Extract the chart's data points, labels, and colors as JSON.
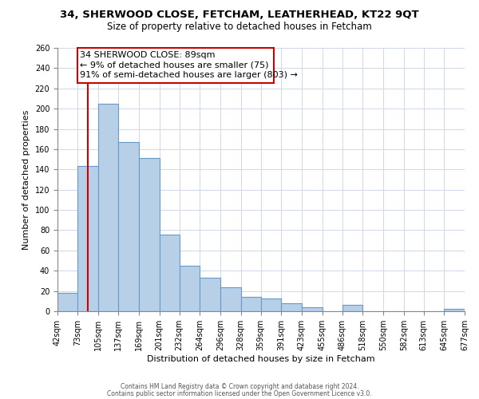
{
  "title1": "34, SHERWOOD CLOSE, FETCHAM, LEATHERHEAD, KT22 9QT",
  "title2": "Size of property relative to detached houses in Fetcham",
  "xlabel": "Distribution of detached houses by size in Fetcham",
  "ylabel": "Number of detached properties",
  "bar_left_edges": [
    42,
    73,
    105,
    137,
    169,
    201,
    232,
    264,
    296,
    328,
    359,
    391,
    423,
    455,
    486,
    518,
    550,
    582,
    613,
    645
  ],
  "bar_heights": [
    18,
    143,
    205,
    167,
    151,
    76,
    45,
    33,
    24,
    14,
    13,
    8,
    4,
    0,
    6,
    0,
    0,
    0,
    0,
    2
  ],
  "bar_widths": [
    31,
    32,
    32,
    32,
    32,
    31,
    32,
    32,
    32,
    31,
    32,
    32,
    32,
    31,
    32,
    32,
    32,
    31,
    32,
    32
  ],
  "tick_labels": [
    "42sqm",
    "73sqm",
    "105sqm",
    "137sqm",
    "169sqm",
    "201sqm",
    "232sqm",
    "264sqm",
    "296sqm",
    "328sqm",
    "359sqm",
    "391sqm",
    "423sqm",
    "455sqm",
    "486sqm",
    "518sqm",
    "550sqm",
    "582sqm",
    "613sqm",
    "645sqm",
    "677sqm"
  ],
  "bar_color": "#b8cfe8",
  "bar_edgecolor": "#6699cc",
  "property_line_x": 89,
  "property_line_color": "#cc0000",
  "annotation_title": "34 SHERWOOD CLOSE: 89sqm",
  "annotation_line1": "← 9% of detached houses are smaller (75)",
  "annotation_line2": "91% of semi-detached houses are larger (803) →",
  "annotation_box_edgecolor": "#cc0000",
  "annotation_box_facecolor": "#ffffff",
  "ylim": [
    0,
    260
  ],
  "yticks": [
    0,
    20,
    40,
    60,
    80,
    100,
    120,
    140,
    160,
    180,
    200,
    220,
    240,
    260
  ],
  "footer1": "Contains HM Land Registry data © Crown copyright and database right 2024.",
  "footer2": "Contains public sector information licensed under the Open Government Licence v3.0.",
  "bg_color": "#ffffff",
  "grid_color": "#d0d8e8",
  "title_fontsize": 9.5,
  "subtitle_fontsize": 8.5,
  "annotation_fontsize": 8.0,
  "ylabel_fontsize": 8,
  "xlabel_fontsize": 8
}
